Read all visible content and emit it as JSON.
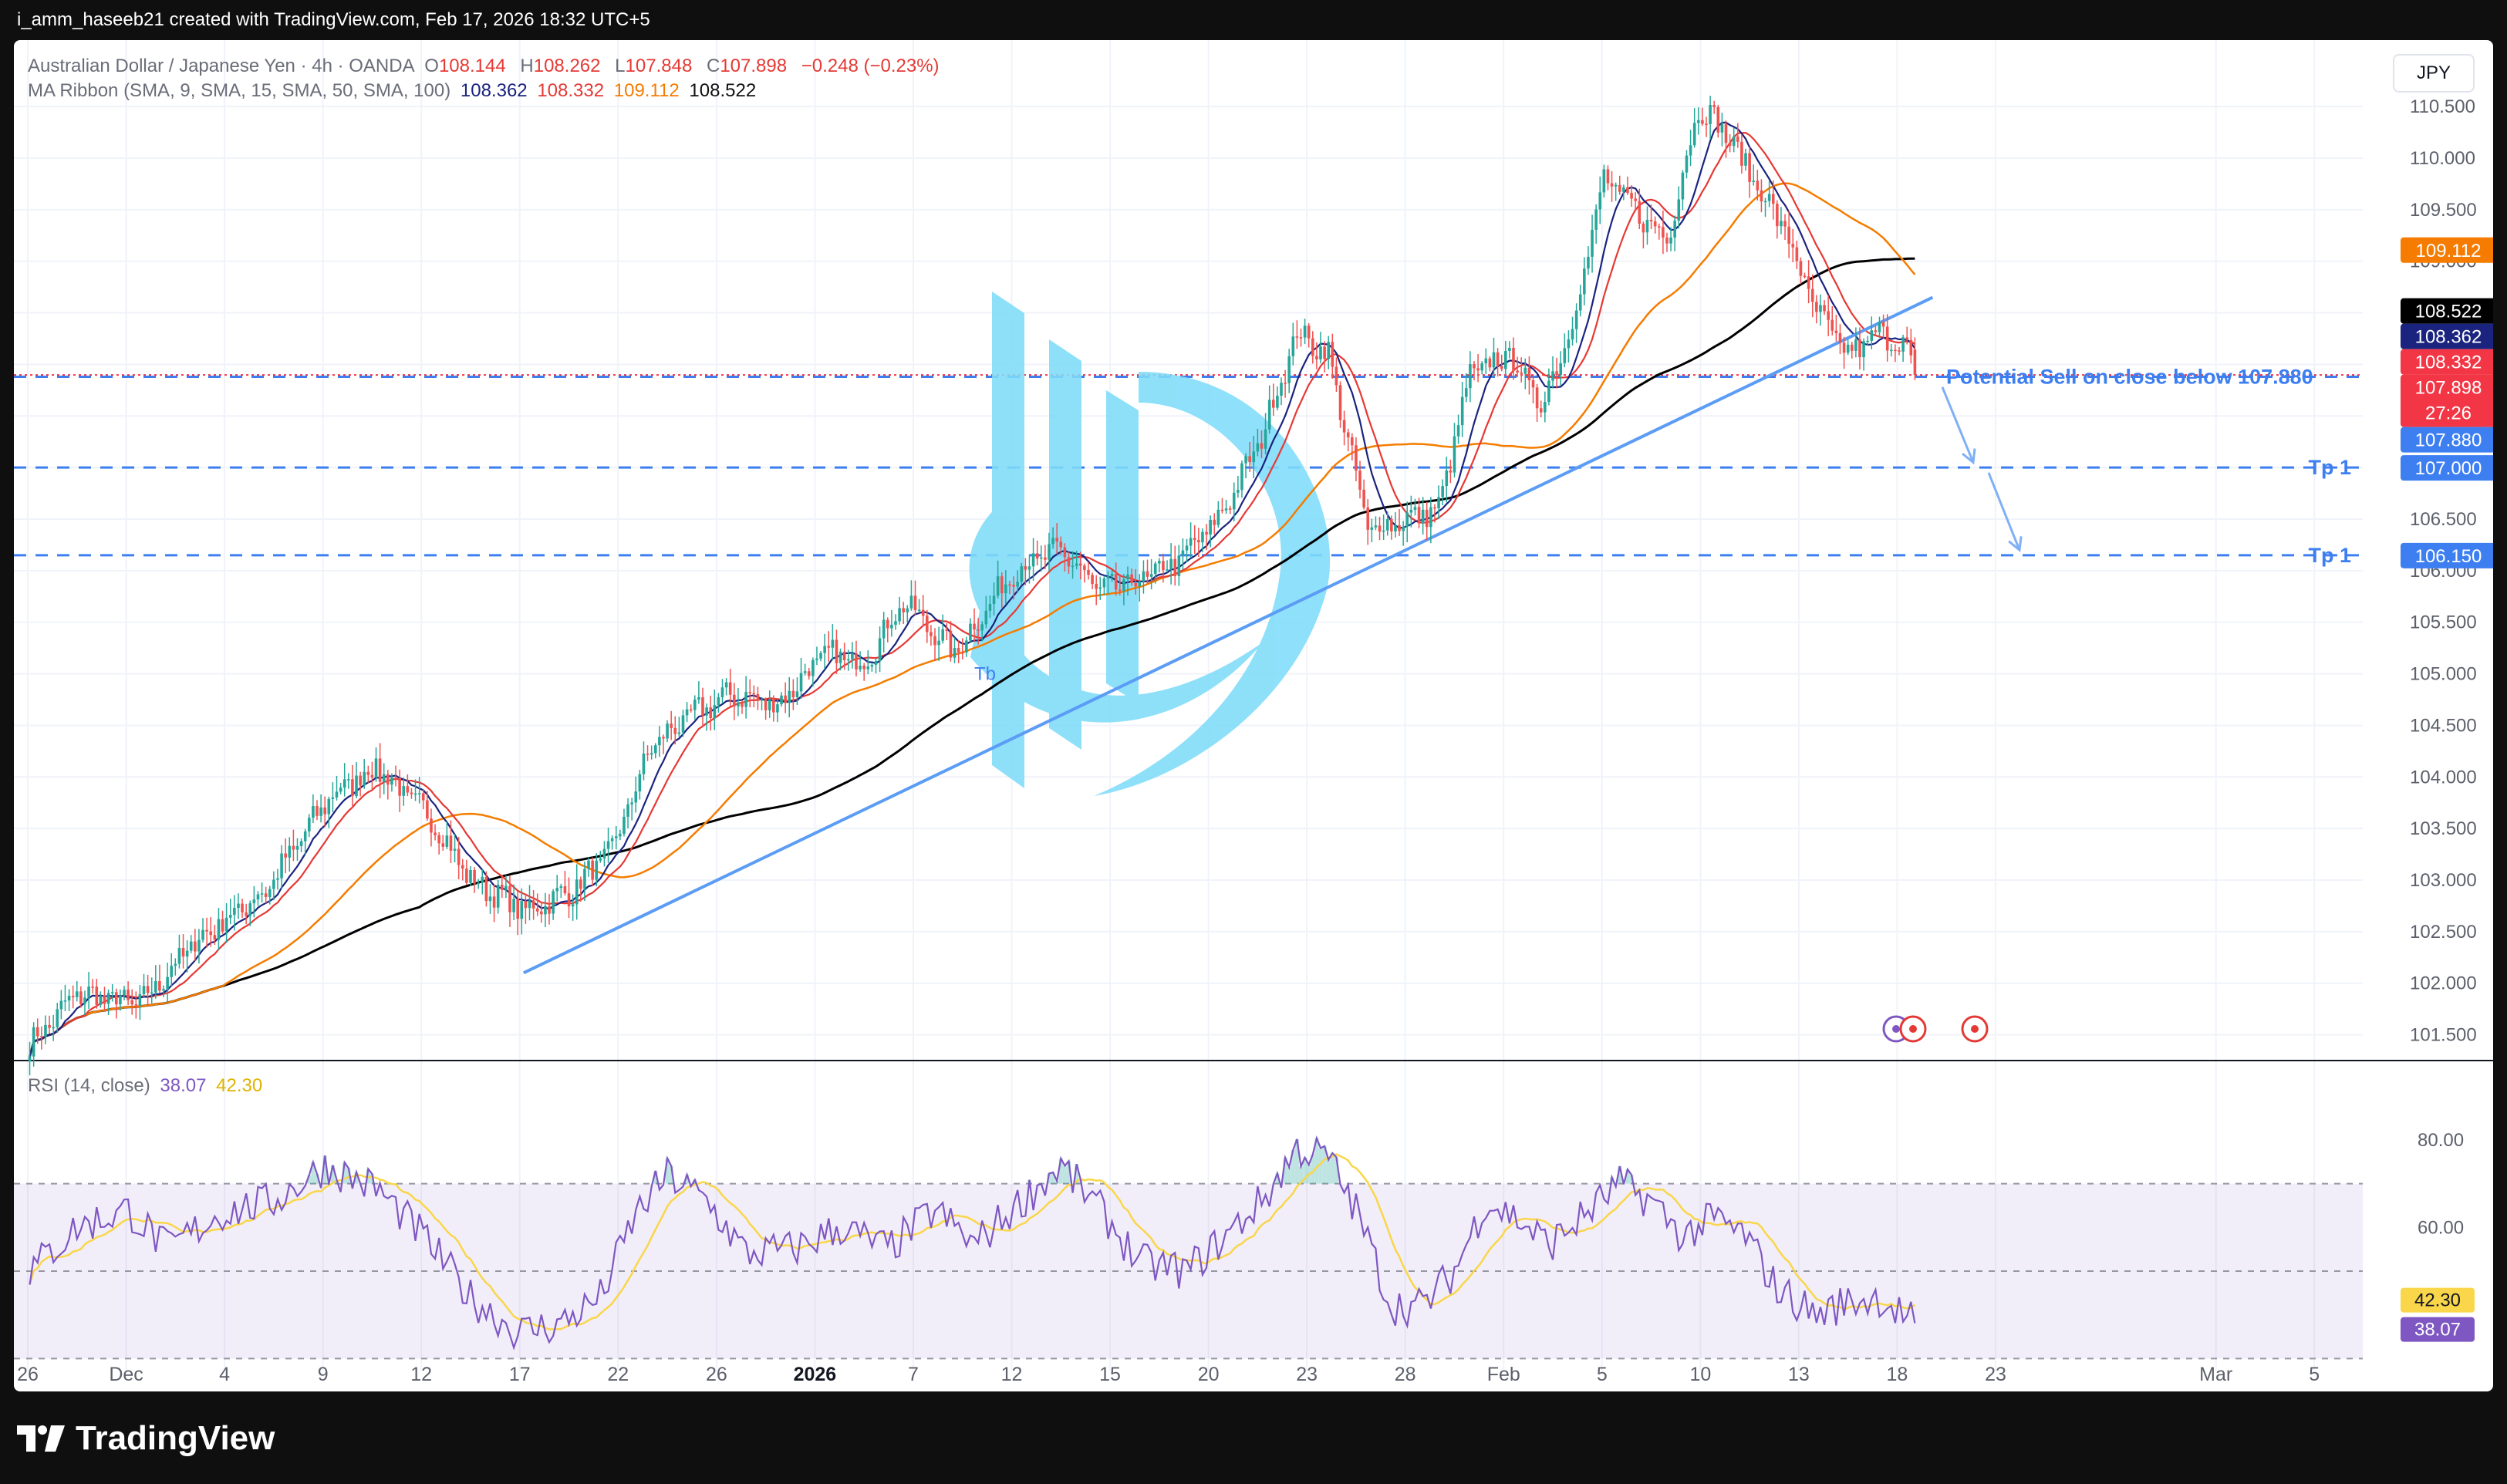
{
  "header": {
    "credit": "i_amm_haseeb21 created with TradingView.com, Feb 17, 2026 18:32 UTC+5"
  },
  "legend": {
    "symbol": "Australian Dollar / Japanese Yen · 4h · OANDA",
    "o_label": "O",
    "o": "108.144",
    "h_label": "H",
    "h": "108.262",
    "l_label": "L",
    "l": "107.848",
    "c_label": "C",
    "c": "107.898",
    "change": "−0.248 (−0.23%)",
    "ma_label": "MA Ribbon (SMA, 9, SMA, 15, SMA, 50, SMA, 100)",
    "ma9": "108.362",
    "ma15": "108.332",
    "ma50": "109.112",
    "ma100": "108.522"
  },
  "rsi_legend": {
    "label": "RSI (14, close)",
    "rsi": "38.07",
    "rsi_ma": "42.30"
  },
  "currency": "JPY",
  "footer": {
    "brand": "TradingView"
  },
  "colors": {
    "bull": "#26a69a",
    "bear": "#ef5350",
    "ma9": "#1a237e",
    "ma15": "#e53935",
    "ma50": "#f57c00",
    "ma100": "#000000",
    "trend": "#5b9cf5",
    "levels": "#3d7ff0",
    "rsi": "#7e57c2",
    "rsi_ma": "#f9d64a",
    "watermark": "#7fdcf9"
  },
  "chart_data": {
    "type": "candlestick",
    "timeframe": "4h",
    "price_axis": {
      "ticks": [
        "110.500",
        "110.000",
        "109.500",
        "109.000",
        "108.500",
        "108.000",
        "107.500",
        "107.000",
        "106.500",
        "106.000",
        "105.500",
        "105.000",
        "104.500",
        "104.000",
        "103.500",
        "103.000",
        "102.500",
        "102.000",
        "101.500"
      ],
      "range": [
        101.25,
        110.98
      ]
    },
    "time_axis": [
      {
        "label": "26",
        "bar": 0
      },
      {
        "label": "Dec",
        "bar": 25
      },
      {
        "label": "4",
        "bar": 50
      },
      {
        "label": "9",
        "bar": 75
      },
      {
        "label": "12",
        "bar": 100
      },
      {
        "label": "17",
        "bar": 125
      },
      {
        "label": "22",
        "bar": 150
      },
      {
        "label": "26",
        "bar": 175
      },
      {
        "label": "2026",
        "bar": 200,
        "bold": true
      },
      {
        "label": "7",
        "bar": 225
      },
      {
        "label": "12",
        "bar": 250
      },
      {
        "label": "15",
        "bar": 275
      },
      {
        "label": "20",
        "bar": 300
      },
      {
        "label": "23",
        "bar": 325
      },
      {
        "label": "28",
        "bar": 350
      },
      {
        "label": "Feb",
        "bar": 375
      },
      {
        "label": "5",
        "bar": 400
      },
      {
        "label": "10",
        "bar": 425
      },
      {
        "label": "13",
        "bar": 450
      },
      {
        "label": "18",
        "bar": 475
      },
      {
        "label": "23",
        "bar": 500
      },
      {
        "label": "Mar",
        "bar": 556
      },
      {
        "label": "5",
        "bar": 581
      }
    ],
    "bar_count": 480,
    "anchors": [
      [
        0,
        101.4
      ],
      [
        12,
        101.9
      ],
      [
        28,
        101.8
      ],
      [
        42,
        102.4
      ],
      [
        60,
        102.9
      ],
      [
        76,
        103.8
      ],
      [
        88,
        104.1
      ],
      [
        102,
        103.6
      ],
      [
        112,
        103.0
      ],
      [
        126,
        102.7
      ],
      [
        138,
        102.9
      ],
      [
        148,
        103.3
      ],
      [
        158,
        104.3
      ],
      [
        168,
        104.6
      ],
      [
        178,
        104.8
      ],
      [
        190,
        104.7
      ],
      [
        202,
        105.2
      ],
      [
        212,
        105.1
      ],
      [
        222,
        105.7
      ],
      [
        235,
        105.2
      ],
      [
        250,
        106.0
      ],
      [
        262,
        106.2
      ],
      [
        272,
        105.8
      ],
      [
        282,
        105.9
      ],
      [
        292,
        106.1
      ],
      [
        302,
        106.5
      ],
      [
        312,
        107.2
      ],
      [
        322,
        108.3
      ],
      [
        330,
        108.1
      ],
      [
        340,
        106.4
      ],
      [
        350,
        106.5
      ],
      [
        358,
        106.6
      ],
      [
        366,
        107.9
      ],
      [
        376,
        108.1
      ],
      [
        384,
        107.6
      ],
      [
        392,
        108.4
      ],
      [
        400,
        109.8
      ],
      [
        408,
        109.5
      ],
      [
        416,
        109.2
      ],
      [
        424,
        110.5
      ],
      [
        430,
        110.3
      ],
      [
        438,
        109.8
      ],
      [
        446,
        109.3
      ],
      [
        454,
        108.5
      ],
      [
        462,
        108.1
      ],
      [
        470,
        108.3
      ],
      [
        476,
        108.2
      ],
      [
        480,
        107.9
      ]
    ],
    "last": {
      "o": 108.144,
      "h": 108.262,
      "l": 107.848,
      "c": 107.898
    },
    "ma_last": {
      "sma9": 108.362,
      "sma15": 108.332,
      "sma50": 109.112,
      "sma100": 108.522
    },
    "price_labels": [
      {
        "text": "109.112",
        "value": 109.112,
        "bg": "#f57c00",
        "fg": "#ffffff"
      },
      {
        "text": "108.522",
        "value": 108.522,
        "bg": "#000000",
        "fg": "#ffffff"
      },
      {
        "text": "108.362",
        "value": 108.362,
        "bg": "#1a237e",
        "fg": "#ffffff"
      },
      {
        "text": "108.332",
        "value": 108.332,
        "bg": "#f23645",
        "fg": "#ffffff"
      },
      {
        "text": "107.898",
        "value": 107.898,
        "bg": "#f23645",
        "fg": "#ffffff",
        "sub": "27:26"
      },
      {
        "text": "107.880",
        "value": 107.88,
        "bg": "#3d7ff0",
        "fg": "#ffffff"
      },
      {
        "text": "107.000",
        "value": 107.0,
        "bg": "#3d7ff0",
        "fg": "#ffffff"
      },
      {
        "text": "106.150",
        "value": 106.15,
        "bg": "#3d7ff0",
        "fg": "#ffffff"
      }
    ],
    "annotations": {
      "sell_text": "Potential Sell on close below 107.880",
      "tp_label": "Tp 1",
      "tp_levels": [
        107.0,
        106.15
      ],
      "sell_level": 107.88,
      "trendline": {
        "from": {
          "bar": 126,
          "price": 102.1
        },
        "to": {
          "bar": 484,
          "price": 108.65
        }
      },
      "small_tag": "Tb"
    },
    "rsi": {
      "ticks": [
        "80.00",
        "60.00"
      ],
      "band": [
        70,
        30
      ],
      "mid": 50,
      "last": 38.07,
      "ma_last": 42.3,
      "anchors": [
        [
          0,
          50
        ],
        [
          12,
          60
        ],
        [
          25,
          64
        ],
        [
          35,
          55
        ],
        [
          48,
          63
        ],
        [
          62,
          66
        ],
        [
          75,
          74
        ],
        [
          88,
          69
        ],
        [
          100,
          58
        ],
        [
          112,
          44
        ],
        [
          124,
          36
        ],
        [
          135,
          38
        ],
        [
          145,
          44
        ],
        [
          154,
          63
        ],
        [
          162,
          72
        ],
        [
          172,
          66
        ],
        [
          182,
          54
        ],
        [
          194,
          55
        ],
        [
          206,
          60
        ],
        [
          218,
          55
        ],
        [
          230,
          64
        ],
        [
          240,
          56
        ],
        [
          252,
          66
        ],
        [
          262,
          74
        ],
        [
          272,
          64
        ],
        [
          282,
          52
        ],
        [
          294,
          50
        ],
        [
          304,
          58
        ],
        [
          314,
          67
        ],
        [
          322,
          78
        ],
        [
          330,
          76
        ],
        [
          338,
          62
        ],
        [
          346,
          42
        ],
        [
          354,
          42
        ],
        [
          362,
          50
        ],
        [
          370,
          66
        ],
        [
          378,
          62
        ],
        [
          386,
          56
        ],
        [
          394,
          62
        ],
        [
          404,
          70
        ],
        [
          412,
          66
        ],
        [
          420,
          58
        ],
        [
          428,
          62
        ],
        [
          436,
          58
        ],
        [
          444,
          46
        ],
        [
          454,
          40
        ],
        [
          462,
          43
        ],
        [
          470,
          44
        ],
        [
          476,
          40
        ],
        [
          480,
          38
        ]
      ]
    }
  }
}
